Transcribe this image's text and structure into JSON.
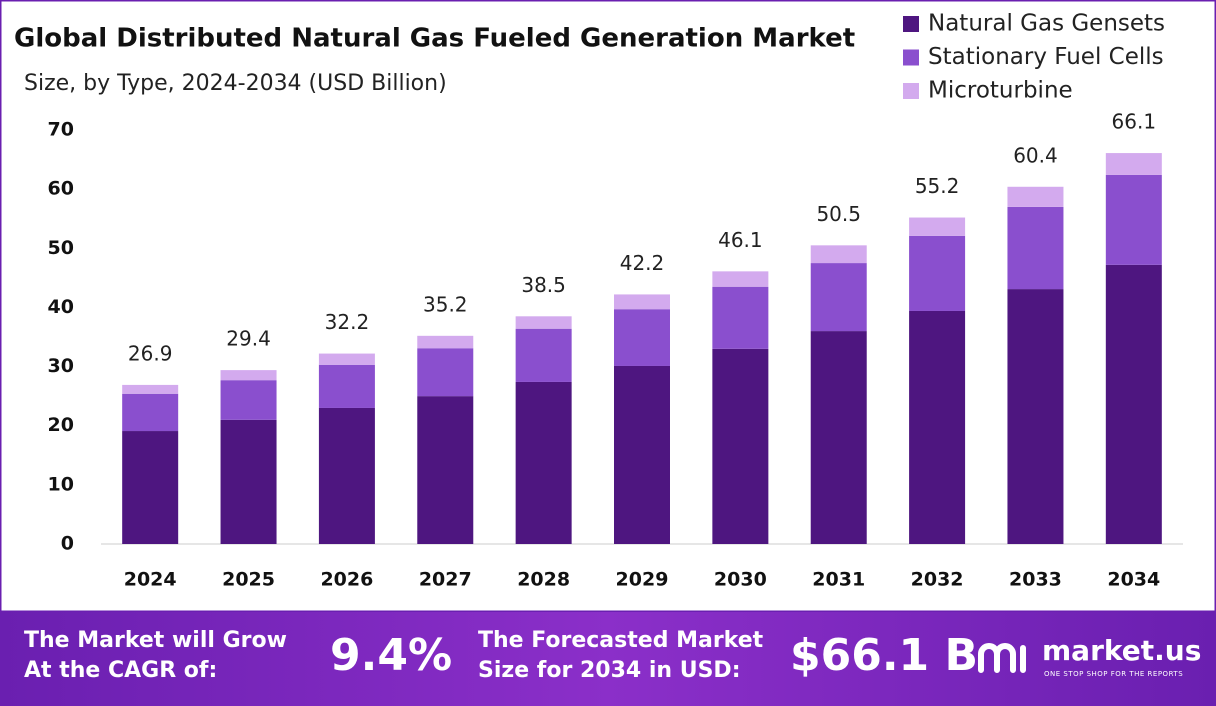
{
  "chart_data": {
    "type": "stacked_bar",
    "title": "Global Distributed Natural Gas Fueled Generation Market",
    "subtitle": "Size, by Type, 2024-2034 (USD Billion)",
    "categories": [
      "2024",
      "2025",
      "2026",
      "2027",
      "2028",
      "2029",
      "2030",
      "2031",
      "2032",
      "2033",
      "2034"
    ],
    "series": [
      {
        "name": "Natural Gas Gensets",
        "color": "#4e1680",
        "values": [
          19.1,
          21.0,
          23.0,
          25.0,
          27.4,
          30.1,
          33.0,
          36.0,
          39.4,
          43.1,
          47.2
        ]
      },
      {
        "name": "Stationary Fuel Cells",
        "color": "#8a4fce",
        "values": [
          6.3,
          6.7,
          7.3,
          8.1,
          9.0,
          9.6,
          10.5,
          11.5,
          12.7,
          13.9,
          15.2
        ]
      },
      {
        "name": "Microturbine",
        "color": "#d3aaee",
        "values": [
          1.5,
          1.7,
          1.9,
          2.1,
          2.1,
          2.5,
          2.6,
          3.0,
          3.1,
          3.4,
          3.7
        ]
      }
    ],
    "totals": [
      26.9,
      29.4,
      32.2,
      35.2,
      38.5,
      42.2,
      46.1,
      50.5,
      55.2,
      60.4,
      66.1
    ],
    "ylim": [
      0,
      70
    ],
    "yticks": [
      0,
      10,
      20,
      30,
      40,
      50,
      60,
      70
    ],
    "grid": false,
    "legend": "top-right"
  },
  "footer": {
    "cagr_label": [
      "The Market will Grow",
      "At the CAGR of:"
    ],
    "cagr_value": "9.4%",
    "forecast_label": [
      "The Forecasted Market",
      "Size for 2034 in USD:"
    ],
    "forecast_value": "$66.1 B",
    "brand": "market.us",
    "tagline": "ONE STOP SHOP FOR THE REPORTS"
  }
}
